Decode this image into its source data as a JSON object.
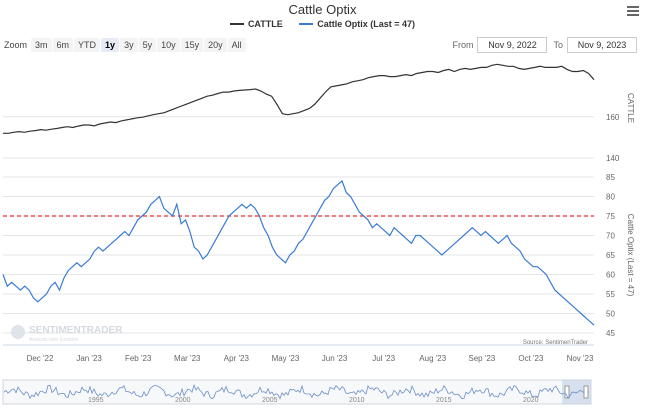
{
  "title": "Cattle Optix",
  "legend": [
    {
      "name": "CATTLE",
      "color": "#333333"
    },
    {
      "name": "Cattle Optix (Last = 47)",
      "color": "#3a7bd5"
    }
  ],
  "zoom": {
    "label": "Zoom",
    "buttons": [
      "3m",
      "6m",
      "YTD",
      "1y",
      "3y",
      "5y",
      "10y",
      "15y",
      "20y",
      "All"
    ],
    "active": "1y"
  },
  "range": {
    "from_label": "From",
    "from_value": "Nov 9, 2022",
    "to_label": "To",
    "to_value": "Nov 9, 2023"
  },
  "watermark": {
    "brand": "SENTIMENTRADER",
    "tagline": "Analysis over Emotion"
  },
  "source": "Source: SentimenTrader",
  "chart_data": [
    {
      "type": "line",
      "name": "price-panel",
      "series": [
        {
          "name": "CATTLE",
          "color": "#333333",
          "values": [
            152,
            152,
            152.5,
            152.8,
            152.5,
            153,
            153.3,
            153.8,
            153.5,
            154,
            154.3,
            154.8,
            155.2,
            154.8,
            155.5,
            156,
            156,
            155.6,
            156.5,
            157,
            157.5,
            157.2,
            158,
            158.5,
            159,
            159.5,
            159.8,
            160.5,
            161,
            161.5,
            162,
            163,
            164,
            165,
            166,
            167,
            168,
            169,
            170,
            170.5,
            171.3,
            172,
            172,
            172.5,
            172.8,
            173,
            173.2,
            173.5,
            172.5,
            171,
            170,
            166,
            161.5,
            161,
            161.5,
            162,
            163,
            164,
            166,
            169,
            172,
            174.5,
            175,
            175.5,
            176,
            177,
            177.5,
            178,
            179,
            179.5,
            180,
            180,
            179.5,
            179.5,
            180,
            180.5,
            180,
            181,
            181.5,
            182,
            182,
            181.5,
            182.5,
            183,
            182,
            183,
            183.5,
            183,
            183.5,
            184,
            184,
            185,
            185.5,
            185,
            184.5,
            184.5,
            183.5,
            183,
            183.5,
            184,
            184.5,
            184,
            184,
            184,
            184.5,
            183,
            182,
            182,
            182.5,
            181,
            178
          ]
        }
      ],
      "yticks": [
        140,
        160
      ],
      "ylim": [
        140,
        190
      ],
      "ylabel": "CATTLE"
    },
    {
      "type": "line",
      "name": "optix-panel",
      "series": [
        {
          "name": "Cattle Optix",
          "color": "#3a7bd5",
          "values": [
            60,
            57,
            58,
            57,
            56,
            57,
            56,
            54,
            53,
            54,
            55,
            57,
            58,
            56,
            59,
            61,
            62,
            63,
            62,
            63,
            64,
            66,
            67,
            66,
            67,
            68,
            69,
            70,
            71,
            70,
            72,
            74,
            75,
            76,
            78,
            79,
            80,
            77,
            76,
            75,
            78,
            73,
            74,
            71,
            67,
            66,
            64,
            65,
            67,
            69,
            71,
            73,
            75,
            76,
            77,
            78,
            77,
            78,
            77,
            75,
            72,
            70,
            67,
            65,
            64,
            63,
            65,
            66,
            68,
            69,
            71,
            73,
            75,
            77,
            79,
            80,
            82,
            83,
            84,
            81,
            80,
            78,
            76,
            75,
            74,
            72,
            73,
            72,
            71,
            70,
            72,
            71,
            70,
            69,
            68,
            70,
            70,
            69,
            68,
            67,
            66,
            65,
            66,
            67,
            68,
            69,
            70,
            71,
            72,
            71,
            70,
            71,
            70,
            69,
            68,
            69,
            70,
            68,
            67,
            66,
            64,
            63,
            62,
            62,
            61,
            60,
            58,
            56,
            55,
            54,
            53,
            52,
            51,
            50,
            49,
            48,
            47
          ]
        }
      ],
      "threshold": 75,
      "threshold_color": "#e03030",
      "yticks": [
        45,
        50,
        55,
        60,
        65,
        70,
        75,
        80,
        85
      ],
      "ylim": [
        45,
        85
      ],
      "ylabel": "Cattle Optix (Last = 47)"
    }
  ],
  "xaxis": {
    "labels": [
      "Dec '22",
      "Jan '23",
      "Feb '23",
      "Mar '23",
      "Apr '23",
      "May '23",
      "Jun '23",
      "Jul '23",
      "Aug '23",
      "Sep '23",
      "Oct '23",
      "Nov '23"
    ]
  },
  "navigator": {
    "labels": [
      "1995",
      "2000",
      "2005",
      "2010",
      "2015",
      "2020"
    ]
  }
}
